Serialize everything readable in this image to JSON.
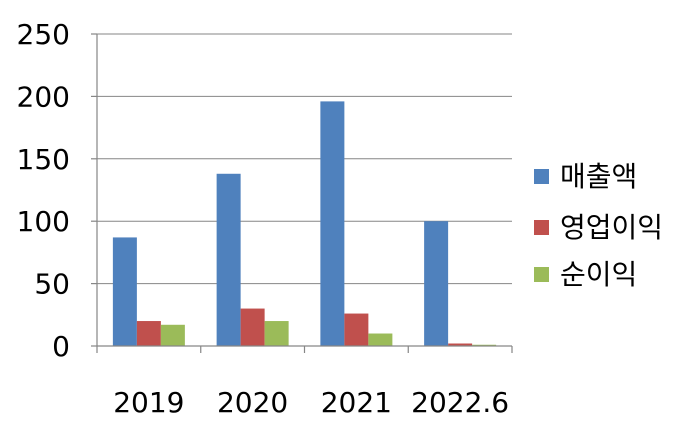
{
  "chart_data": {
    "type": "bar",
    "title": "",
    "xlabel": "",
    "ylabel": "",
    "categories": [
      "2019",
      "2020",
      "2021",
      "2022.6"
    ],
    "series": [
      {
        "name": "매출액",
        "values": [
          87,
          138,
          196,
          100
        ],
        "color": "#4F81BD"
      },
      {
        "name": "영업이익",
        "values": [
          20,
          30,
          26,
          2
        ],
        "color": "#C0504D"
      },
      {
        "name": "순이익",
        "values": [
          17,
          20,
          10,
          1
        ],
        "color": "#9BBB59"
      }
    ],
    "ylim": [
      0,
      250
    ],
    "yticks": [
      0,
      50,
      100,
      150,
      200,
      250
    ],
    "grid": true,
    "legend_position": "right"
  }
}
